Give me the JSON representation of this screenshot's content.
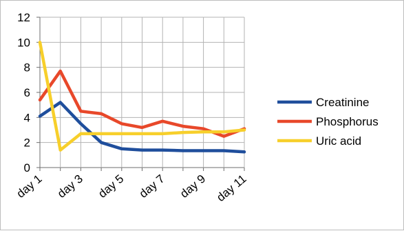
{
  "chart_data": {
    "type": "line",
    "x": [
      "day 1",
      "day 2",
      "day 3",
      "day 4",
      "day 5",
      "day 6",
      "day 7",
      "day 8",
      "day 9",
      "day 10",
      "day 11"
    ],
    "x_tick_labels": [
      "day 1",
      "day 3",
      "day 5",
      "day 7",
      "day 9",
      "day 11"
    ],
    "y_ticks": [
      0,
      2,
      4,
      6,
      8,
      10,
      12
    ],
    "ylim": [
      0,
      12
    ],
    "grid": true,
    "legend_position": "right",
    "title": "",
    "xlabel": "",
    "ylabel": "",
    "series": [
      {
        "name": "Creatinine",
        "color": "#1f4e9c",
        "values": [
          4.1,
          5.2,
          3.5,
          2.0,
          1.5,
          1.4,
          1.4,
          1.35,
          1.35,
          1.35,
          1.25
        ]
      },
      {
        "name": "Phosphorus",
        "color": "#e8482a",
        "values": [
          5.4,
          7.7,
          4.5,
          4.3,
          3.5,
          3.2,
          3.7,
          3.3,
          3.1,
          2.5,
          3.1
        ]
      },
      {
        "name": "Uric acid",
        "color": "#f7cf2b",
        "values": [
          10.0,
          1.4,
          2.7,
          2.7,
          2.7,
          2.7,
          2.7,
          2.8,
          2.85,
          2.85,
          3.0
        ]
      }
    ]
  }
}
